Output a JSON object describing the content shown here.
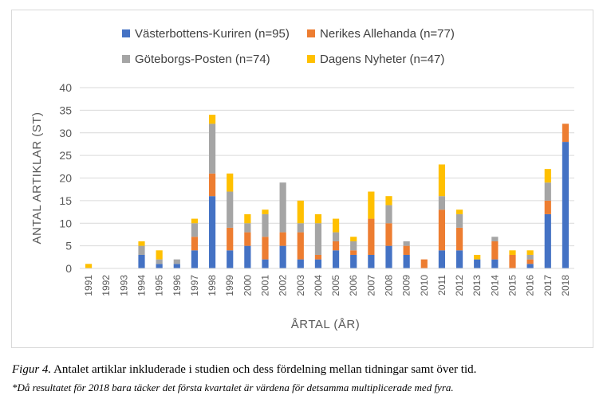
{
  "chart_data": {
    "type": "bar",
    "stacked": true,
    "title": "",
    "xlabel": "ÅRTAL (ÅR)",
    "ylabel": "ANTAL ARTIKLAR (ST)",
    "ylim": [
      0,
      40
    ],
    "yticks": [
      0,
      5,
      10,
      15,
      20,
      25,
      30,
      35,
      40
    ],
    "grid": true,
    "legend_position": "top",
    "categories": [
      "1991",
      "1992",
      "1993",
      "1994",
      "1995",
      "1996",
      "1997",
      "1998",
      "1999",
      "2000",
      "2001",
      "2002",
      "2003",
      "2004",
      "2005",
      "2006",
      "2007",
      "2008",
      "2009",
      "2010",
      "2011",
      "2012",
      "2013",
      "2014",
      "2015",
      "2016",
      "2017",
      "2018"
    ],
    "series": [
      {
        "name": "Västerbottens-Kuriren (n=95)",
        "color": "#4472c4",
        "values": [
          0,
          0,
          0,
          3,
          1,
          1,
          4,
          16,
          4,
          5,
          2,
          5,
          2,
          2,
          4,
          3,
          3,
          5,
          3,
          0,
          4,
          4,
          2,
          2,
          0,
          1,
          12,
          28
        ]
      },
      {
        "name": "Nerikes Allehanda (n=77)",
        "color": "#ed7d31",
        "values": [
          0,
          0,
          0,
          0,
          0,
          0,
          3,
          5,
          5,
          3,
          5,
          3,
          6,
          1,
          2,
          1,
          8,
          5,
          2,
          2,
          9,
          5,
          0,
          4,
          3,
          1,
          3,
          4
        ]
      },
      {
        "name": "Göteborgs-Posten (n=74)",
        "color": "#a5a5a5",
        "values": [
          0,
          0,
          0,
          2,
          1,
          1,
          3,
          11,
          8,
          2,
          5,
          11,
          2,
          7,
          2,
          2,
          0,
          4,
          1,
          0,
          3,
          3,
          0,
          1,
          0,
          1,
          4,
          0
        ]
      },
      {
        "name": "Dagens Nyheter (n=47)",
        "color": "#ffc000",
        "values": [
          1,
          0,
          0,
          1,
          2,
          0,
          1,
          2,
          4,
          2,
          1,
          0,
          5,
          2,
          3,
          1,
          6,
          2,
          0,
          0,
          7,
          1,
          1,
          0,
          1,
          1,
          3,
          0
        ]
      }
    ]
  },
  "caption": {
    "figure_label": "Figur 4.",
    "text": " Antalet artiklar inkluderade i studien och dess fördelning mellan tidningar samt över tid.",
    "note": "*Då resultatet för 2018 bara täcker det första kvartalet är värdena för detsamma multiplicerade med fyra."
  }
}
